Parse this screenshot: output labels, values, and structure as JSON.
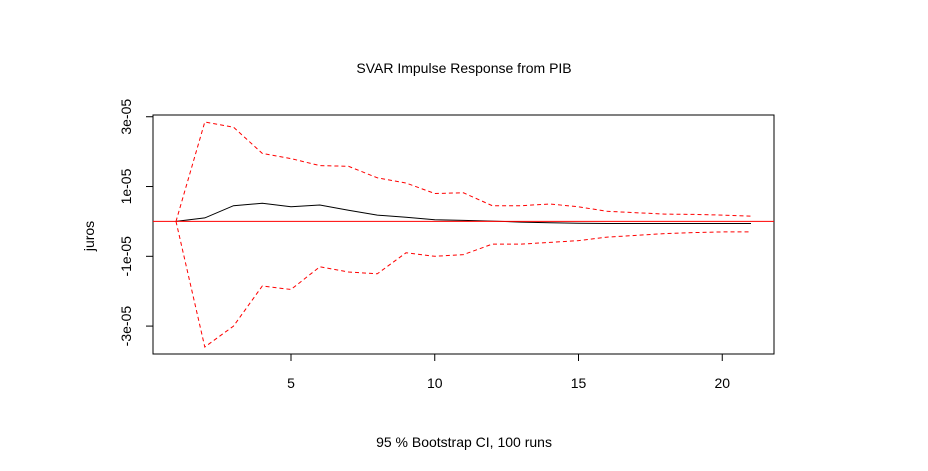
{
  "chart_data": {
    "type": "line",
    "title": "SVAR Impulse Response from PIB",
    "xlabel": "95 % Bootstrap CI,  100 runs",
    "ylabel": "juros",
    "xlim": [
      0.2,
      21.8
    ],
    "ylim": [
      -3.8e-05,
      3.05e-05
    ],
    "x_ticks": [
      5,
      10,
      15,
      20
    ],
    "x_tick_labels": [
      "5",
      "10",
      "15",
      "20"
    ],
    "y_ticks": [
      -3e-05,
      -1e-05,
      1e-05,
      3e-05
    ],
    "y_tick_labels": [
      "-3e-05",
      "-1e-05",
      "1e-05",
      "3e-05"
    ],
    "grid": false,
    "legend": "none",
    "zero_line": {
      "value": 0,
      "color": "#ff0000"
    },
    "x": [
      1,
      2,
      3,
      4,
      5,
      6,
      7,
      8,
      9,
      10,
      11,
      12,
      13,
      14,
      15,
      16,
      17,
      18,
      19,
      20,
      21
    ],
    "series": [
      {
        "values": [
          0,
          1e-06,
          4.5e-06,
          5.2e-06,
          4.2e-06,
          4.7e-06,
          3.2e-06,
          1.8e-06,
          1.2e-06,
          5e-07,
          3e-07,
          1e-07,
          -2e-07,
          -4e-07,
          -5e-07,
          -6e-07,
          -6e-07,
          -6e-07,
          -6e-07,
          -6e-07,
          -6e-07
        ],
        "color": "#000000",
        "style": "solid"
      },
      {
        "values": [
          0,
          2.85e-05,
          2.7e-05,
          1.95e-05,
          1.8e-05,
          1.6e-05,
          1.58e-05,
          1.25e-05,
          1.1e-05,
          8e-06,
          8.2e-06,
          4.5e-06,
          4.5e-06,
          5e-06,
          4.2e-06,
          2.9e-06,
          2.5e-06,
          2.1e-06,
          2e-06,
          1.8e-06,
          1.5e-06
        ],
        "color": "#ff0000",
        "style": "dashed"
      },
      {
        "values": [
          0,
          -3.6e-05,
          -3e-05,
          -1.85e-05,
          -1.95e-05,
          -1.3e-05,
          -1.45e-05,
          -1.5e-05,
          -9e-06,
          -1e-05,
          -9.5e-06,
          -6.5e-06,
          -6.5e-06,
          -6e-06,
          -5.5e-06,
          -4.5e-06,
          -4e-06,
          -3.5e-06,
          -3.2e-06,
          -3e-06,
          -3e-06
        ],
        "color": "#ff0000",
        "style": "dashed"
      }
    ]
  }
}
